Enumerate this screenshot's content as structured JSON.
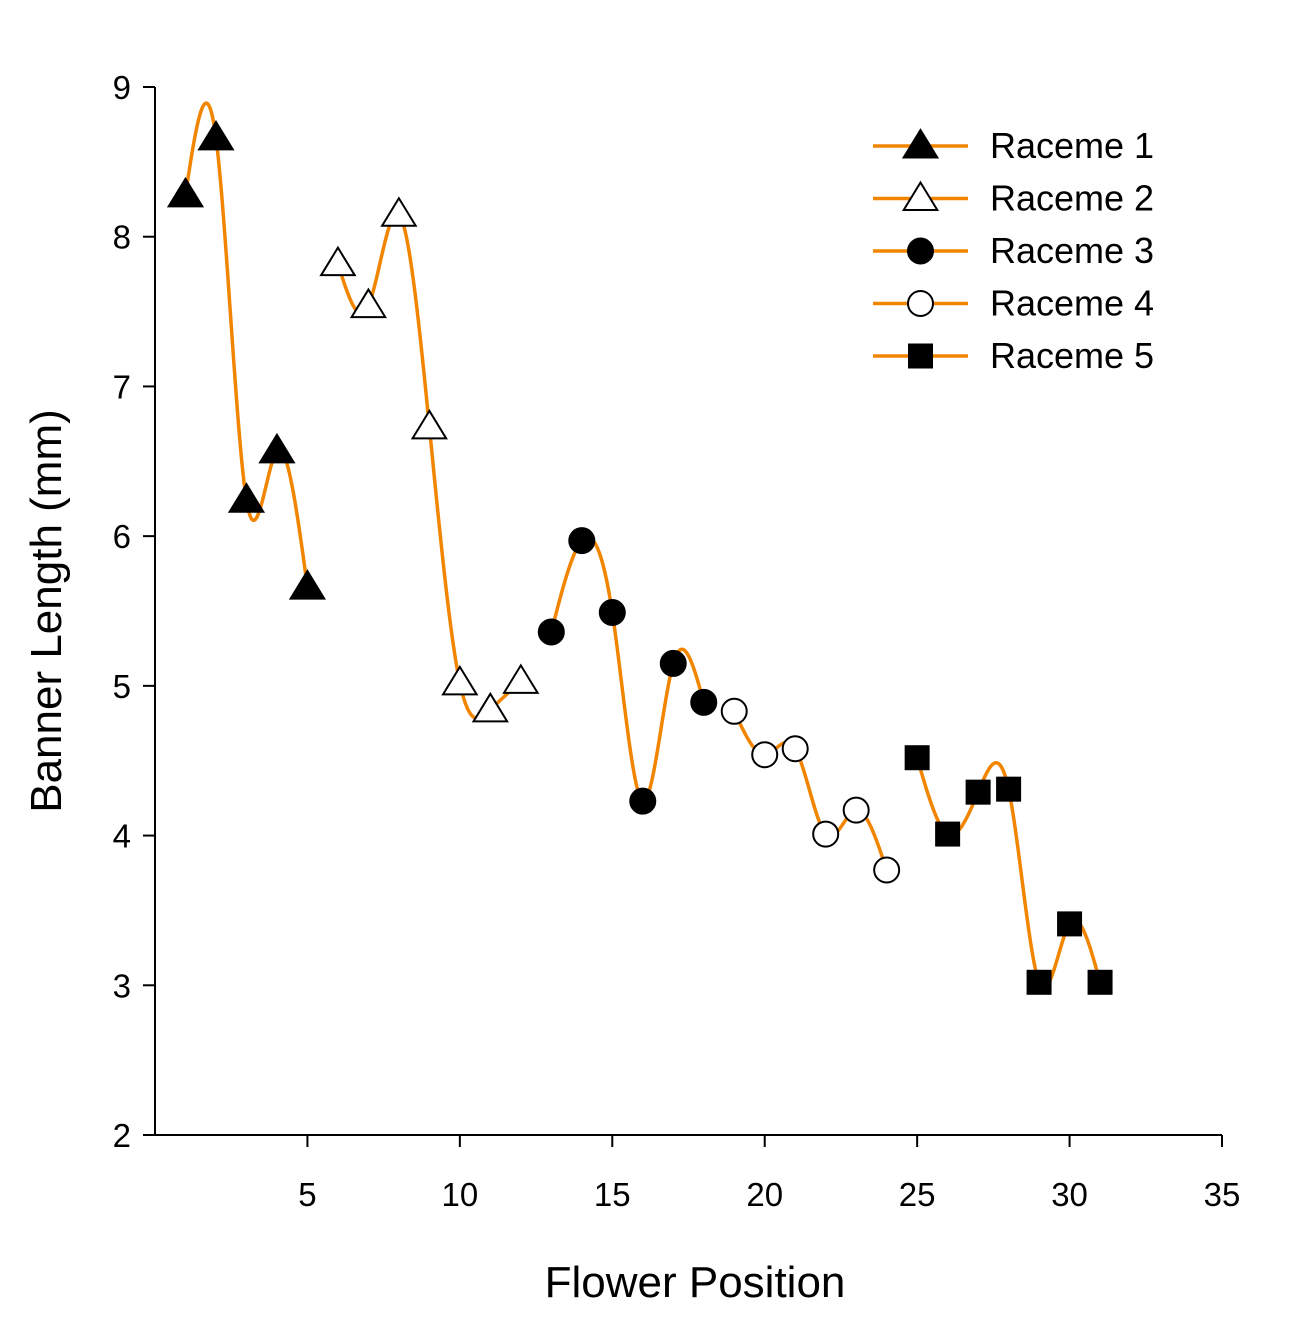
{
  "chart_data": {
    "type": "line",
    "title": "",
    "xlabel": "Flower Position",
    "ylabel": "Banner Length (mm)",
    "xlim": [
      0,
      35
    ],
    "ylim": [
      2,
      9
    ],
    "x_ticks": [
      5,
      10,
      15,
      20,
      25,
      30,
      35
    ],
    "y_ticks": [
      2,
      3,
      4,
      5,
      6,
      7,
      8,
      9
    ],
    "grid": false,
    "legend_position": "top-right",
    "line_color": "#F28500",
    "line_style": "smooth spline",
    "series": [
      {
        "name": "Raceme 1",
        "marker": "filled-triangle",
        "x": [
          1,
          2,
          3,
          4,
          5
        ],
        "y": [
          8.28,
          8.66,
          6.24,
          6.57,
          5.66
        ]
      },
      {
        "name": "Raceme 2",
        "marker": "open-triangle",
        "x": [
          6,
          7,
          8,
          9,
          10,
          11,
          12
        ],
        "y": [
          7.82,
          7.54,
          8.15,
          6.73,
          5.02,
          4.84,
          5.03
        ]
      },
      {
        "name": "Raceme 3",
        "marker": "filled-circle",
        "x": [
          13,
          14,
          15,
          16,
          17,
          18
        ],
        "y": [
          5.36,
          5.97,
          5.49,
          4.23,
          5.15,
          4.89
        ]
      },
      {
        "name": "Raceme 4",
        "marker": "open-circle",
        "x": [
          19,
          20,
          21,
          22,
          23,
          24
        ],
        "y": [
          4.83,
          4.54,
          4.58,
          4.01,
          4.17,
          3.77
        ]
      },
      {
        "name": "Raceme 5",
        "marker": "filled-square",
        "x": [
          25,
          26,
          27,
          28,
          29,
          30,
          31
        ],
        "y": [
          4.52,
          4.01,
          4.29,
          4.31,
          3.02,
          3.41,
          3.02
        ]
      }
    ]
  }
}
